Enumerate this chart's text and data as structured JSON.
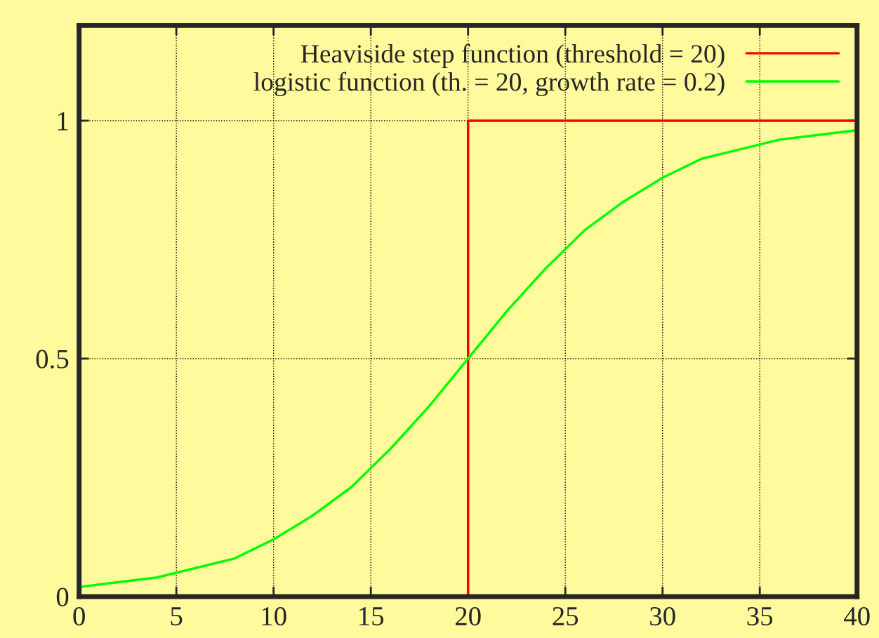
{
  "chart_data": {
    "type": "line",
    "series": [
      {
        "name": "Heaviside step function (threshold = 20)",
        "type": "step",
        "color": "#ff0000",
        "x": [
          0,
          20,
          40
        ],
        "values": [
          0,
          1,
          1
        ]
      },
      {
        "name": "logistic function (th. = 20, growth rate = 0.2)",
        "color": "#00ff00",
        "x": [
          0,
          2,
          4,
          6,
          8,
          10,
          12,
          14,
          16,
          18,
          20,
          22,
          24,
          26,
          28,
          30,
          32,
          34,
          36,
          38,
          40
        ],
        "values": [
          0.02,
          0.03,
          0.04,
          0.06,
          0.08,
          0.12,
          0.17,
          0.23,
          0.31,
          0.4,
          0.5,
          0.6,
          0.69,
          0.77,
          0.83,
          0.88,
          0.92,
          0.94,
          0.96,
          0.97,
          0.98
        ]
      }
    ],
    "xlim": [
      0,
      40
    ],
    "xticks": [
      0,
      5,
      10,
      15,
      20,
      25,
      30,
      35,
      40
    ],
    "ylim": [
      0,
      1.2
    ],
    "yticks": [
      0,
      0.5,
      1
    ],
    "grid": true,
    "legend": "top right",
    "line_style": "solid",
    "marker": "none"
  }
}
